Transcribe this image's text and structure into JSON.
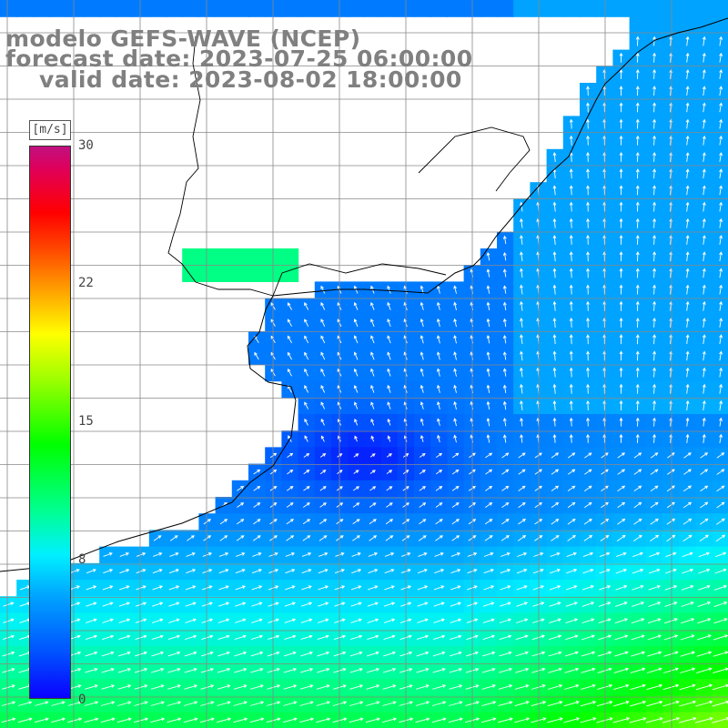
{
  "title": {
    "model": "modelo GEFS-WAVE (NCEP)",
    "forecast": "forecast date: 2023-07-25 06:00:00",
    "valid": "valid date: 2023-08-02 18:00:00"
  },
  "colorbar": {
    "unit": "[m/s]",
    "min": 0,
    "max": 30,
    "tick_labels": [
      "30",
      "22",
      "15",
      "8",
      "0"
    ],
    "tick_values": [
      30,
      22,
      15,
      8,
      0
    ],
    "stops": [
      "#0a00ff",
      "#0050ff",
      "#00a0ff",
      "#00f0ff",
      "#00ff90",
      "#00ff00",
      "#a0ff00",
      "#ffff00",
      "#ffa000",
      "#ff4000",
      "#ff0000",
      "#e0005a",
      "#c01080"
    ]
  },
  "map": {
    "type": "wind speed field with direction arrows",
    "land_color": "#ffffff",
    "grid_color": "#888888",
    "coastline_color": "#000000"
  }
}
